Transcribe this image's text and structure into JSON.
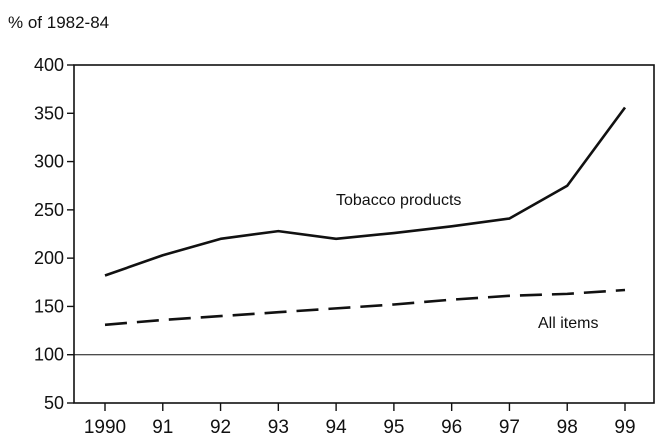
{
  "chart_data": {
    "type": "line",
    "title": "",
    "ylabel": "% of 1982-84",
    "xlabel": "",
    "x": [
      "1990",
      "91",
      "92",
      "93",
      "94",
      "95",
      "96",
      "97",
      "98",
      "99"
    ],
    "ylim": [
      50,
      400
    ],
    "yticks": [
      "400",
      "350",
      "300",
      "250",
      "200",
      "150",
      "100",
      "50"
    ],
    "reference_line": 100,
    "grid": false,
    "series": [
      {
        "name": "Tobacco products",
        "values": [
          182,
          203,
          220,
          228,
          220,
          226,
          233,
          241,
          275,
          356
        ],
        "style": "solid",
        "color": "#111111"
      },
      {
        "name": "All items",
        "values": [
          131,
          136,
          140,
          144,
          148,
          152,
          157,
          161,
          163,
          167
        ],
        "style": "dashed",
        "color": "#111111"
      }
    ]
  }
}
